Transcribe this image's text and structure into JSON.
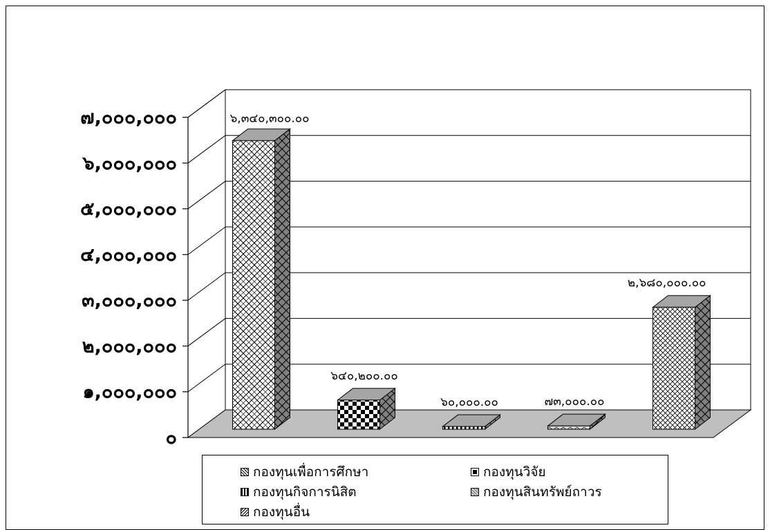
{
  "chart_data": {
    "type": "bar",
    "categories": [
      "กองทุนเพื่อการศึกษา",
      "กองทุนวิจัย",
      "กองทุนกิจการนิสิต",
      "กองทุนสินทรัพย์ถาวร",
      "กองทุนอื่น"
    ],
    "values": [
      6340300,
      640200,
      60000,
      73000,
      2680000
    ],
    "data_labels": [
      "๖,๓๔๐,๓๐๐.๐๐",
      "๖๔๐,๒๐๐.๐๐",
      "๖๐,๐๐๐.๐๐",
      "๗๓,๐๐๐.๐๐",
      "๒,๖๘๐,๐๐๐.๐๐"
    ],
    "ylim": [
      0,
      7000000
    ],
    "yticks": [
      0,
      1000000,
      2000000,
      3000000,
      4000000,
      5000000,
      6000000,
      7000000
    ],
    "ytick_labels": [
      "๐",
      "๑,๐๐๐,๐๐๐",
      "๒,๐๐๐,๐๐๐",
      "๓,๐๐๐,๐๐๐",
      "๔,๐๐๐,๐๐๐",
      "๕,๐๐๐,๐๐๐",
      "๖,๐๐๐,๐๐๐",
      "๗,๐๐๐,๐๐๐"
    ],
    "grid": true,
    "style": "3d-column",
    "legend_position": "bottom",
    "colors": {
      "floor": "#bfbfbf",
      "side": "#808080",
      "top": "#a6a6a6",
      "edge": "#000000",
      "grid": "#000000"
    }
  },
  "legend": [
    {
      "label": "กองทุนเพื่อการศึกษา",
      "pattern": "diagcross"
    },
    {
      "label": "กองทุนวิจัย",
      "pattern": "checker"
    },
    {
      "label": "กองทุนกิจการนิสิต",
      "pattern": "vstripes"
    },
    {
      "label": "กองทุนสินทรัพย์ถาวร",
      "pattern": "wave"
    },
    {
      "label": "กองทุนอื่น",
      "pattern": "diamond"
    }
  ]
}
